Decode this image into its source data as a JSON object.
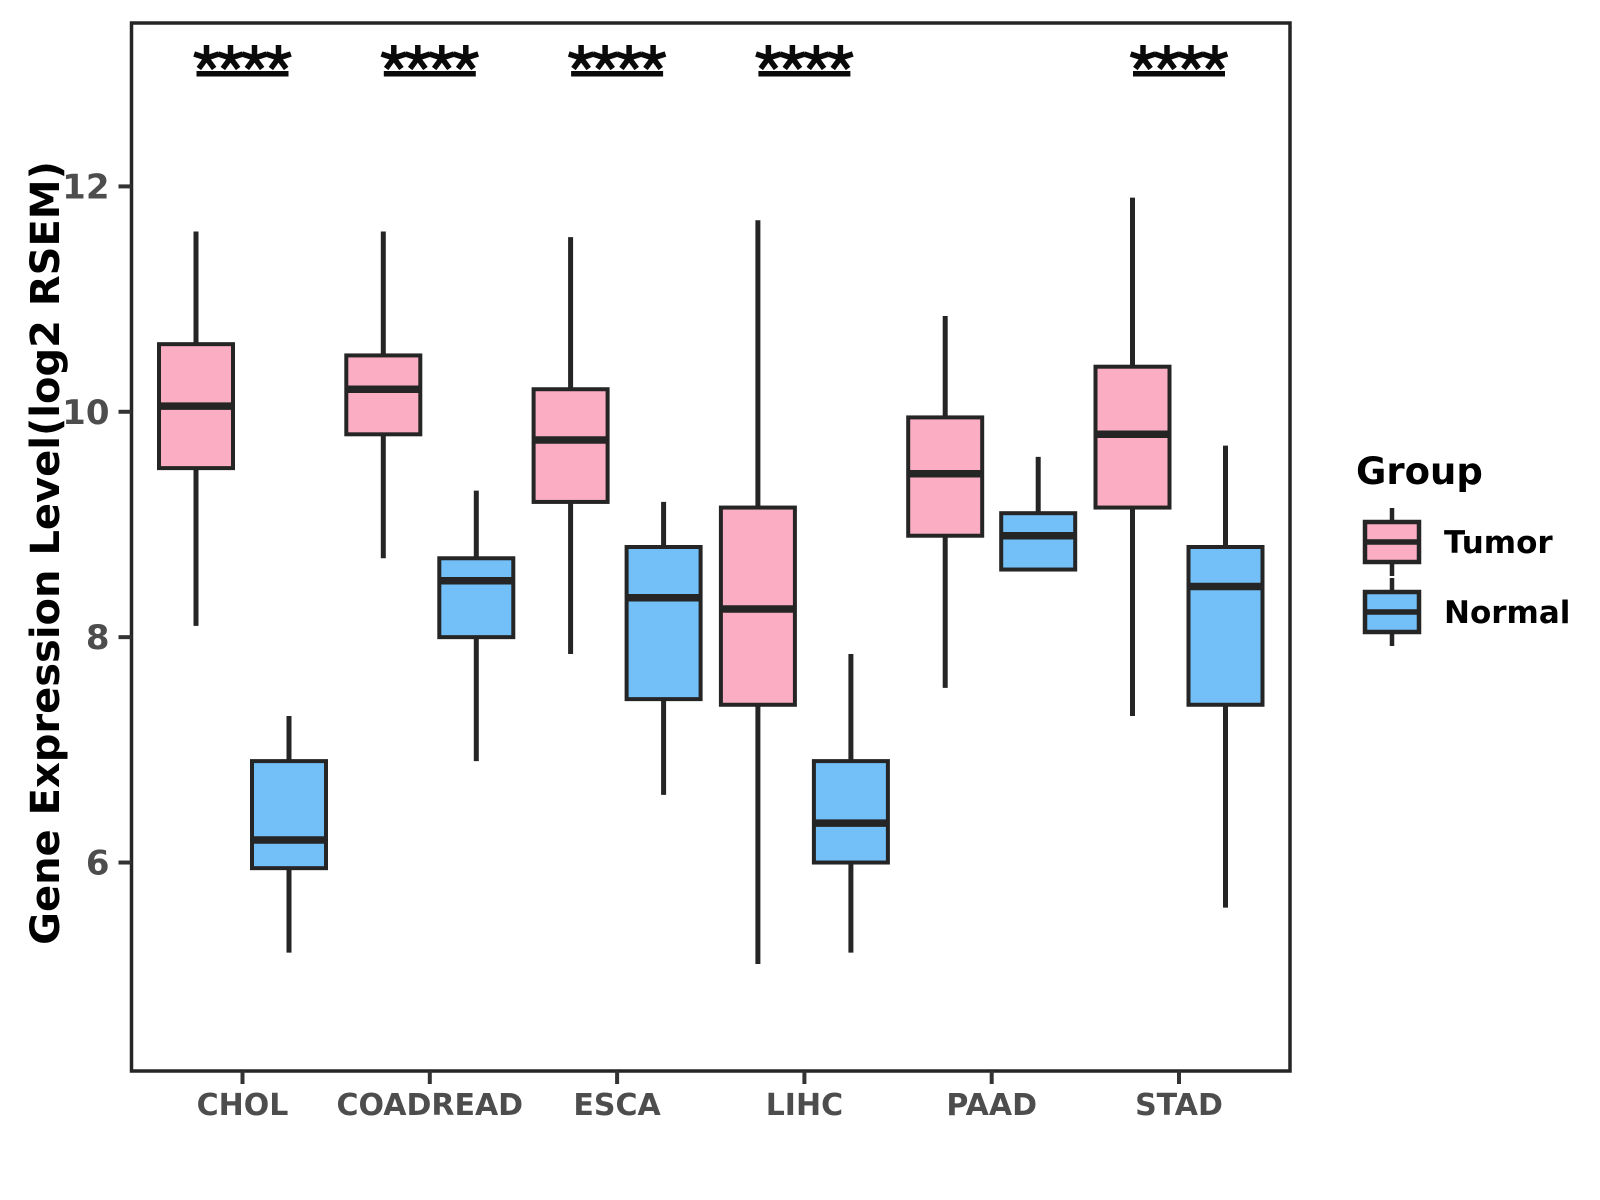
{
  "figure": {
    "background": "#ffffff",
    "frame_color": "#252525",
    "tick_label_color": "#4d4d4d",
    "significance_color": "#0a0a0a"
  },
  "legend": {
    "title": "Group",
    "items": [
      {
        "label": "Tumor",
        "color": "#FBAEC3"
      },
      {
        "label": "Normal",
        "color": "#73BFF7"
      }
    ]
  },
  "chart_data": {
    "type": "boxplot",
    "title": "",
    "xlabel": "",
    "ylabel": "Gene Expression Level(log2 RSEM)",
    "categories": [
      "CHOL",
      "COADREAD",
      "ESCA",
      "LIHC",
      "PAAD",
      "STAD"
    ],
    "y_ticks": [
      6,
      8,
      10,
      12
    ],
    "ylim": [
      4.15,
      13.45
    ],
    "grid": false,
    "legend_position": "right",
    "series": [
      {
        "name": "Tumor",
        "color": "#FBAEC3",
        "boxes": [
          {
            "category": "CHOL",
            "whisker_low": 8.1,
            "q1": 9.5,
            "median": 10.05,
            "q3": 10.6,
            "whisker_high": 11.6
          },
          {
            "category": "COADREAD",
            "whisker_low": 8.7,
            "q1": 9.8,
            "median": 10.2,
            "q3": 10.5,
            "whisker_high": 11.6
          },
          {
            "category": "ESCA",
            "whisker_low": 7.85,
            "q1": 9.2,
            "median": 9.75,
            "q3": 10.2,
            "whisker_high": 11.55
          },
          {
            "category": "LIHC",
            "whisker_low": 5.1,
            "q1": 7.4,
            "median": 8.25,
            "q3": 9.15,
            "whisker_high": 11.7
          },
          {
            "category": "PAAD",
            "whisker_low": 7.55,
            "q1": 8.9,
            "median": 9.45,
            "q3": 9.95,
            "whisker_high": 10.85
          },
          {
            "category": "STAD",
            "whisker_low": 7.3,
            "q1": 9.15,
            "median": 9.8,
            "q3": 10.4,
            "whisker_high": 11.9
          }
        ]
      },
      {
        "name": "Normal",
        "color": "#73BFF7",
        "boxes": [
          {
            "category": "CHOL",
            "whisker_low": 5.2,
            "q1": 5.95,
            "median": 6.2,
            "q3": 6.9,
            "whisker_high": 7.3
          },
          {
            "category": "COADREAD",
            "whisker_low": 6.9,
            "q1": 8.0,
            "median": 8.5,
            "q3": 8.7,
            "whisker_high": 9.3
          },
          {
            "category": "ESCA",
            "whisker_low": 6.6,
            "q1": 7.45,
            "median": 8.35,
            "q3": 8.8,
            "whisker_high": 9.2
          },
          {
            "category": "LIHC",
            "whisker_low": 5.2,
            "q1": 6.0,
            "median": 6.35,
            "q3": 6.9,
            "whisker_high": 7.85
          },
          {
            "category": "PAAD",
            "whisker_low": 8.6,
            "q1": 8.6,
            "median": 8.9,
            "q3": 9.1,
            "whisker_high": 9.6
          },
          {
            "category": "STAD",
            "whisker_low": 5.6,
            "q1": 7.4,
            "median": 8.45,
            "q3": 8.8,
            "whisker_high": 9.7
          }
        ]
      }
    ],
    "significance": [
      {
        "category": "CHOL",
        "label": "****"
      },
      {
        "category": "COADREAD",
        "label": "****"
      },
      {
        "category": "ESCA",
        "label": "****"
      },
      {
        "category": "LIHC",
        "label": "****"
      },
      {
        "category": "STAD",
        "label": "****"
      }
    ]
  }
}
